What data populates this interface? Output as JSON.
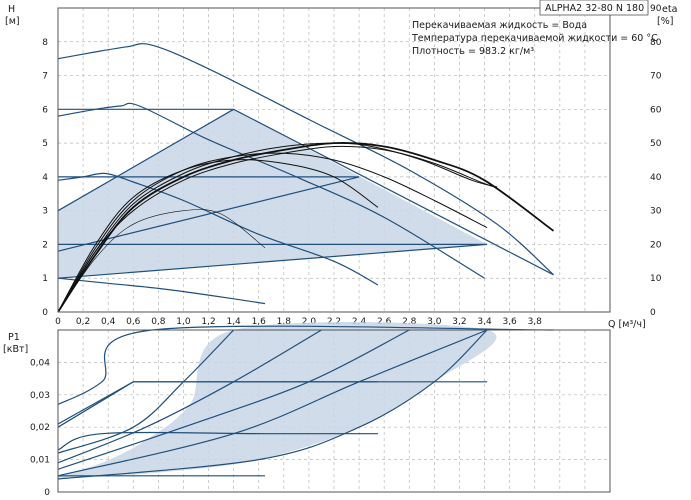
{
  "model_label": "ALPHA2 32-80 N 180",
  "notes": [
    "Перекачиваемая жидкость = Вода",
    "Температура перекачиваемой жидкости = 60 °C",
    "Плотность = 983.2 кг/м³"
  ],
  "chart_data": [
    {
      "type": "line",
      "title": "",
      "xlabel": "Q [м³/ч]",
      "ylabel": "H",
      "ylabel_unit": "[м]",
      "y2label": "eta",
      "y2label_unit": "[%]",
      "xlim": [
        0,
        4.4
      ],
      "ylim": [
        0,
        9
      ],
      "y2lim": [
        0,
        90
      ],
      "xticks": [
        "0",
        "0,2",
        "0,4",
        "0,6",
        "0,8",
        "1,0",
        "1,2",
        "1,4",
        "1,6",
        "1,8",
        "2,0",
        "2,2",
        "2,4",
        "2,6",
        "2,8",
        "3,0",
        "3,2",
        "3,4",
        "3,6",
        "3,8"
      ],
      "yticks": [
        "0",
        "1",
        "2",
        "3",
        "4",
        "5",
        "6",
        "7",
        "8"
      ],
      "y2ticks": [
        "0",
        "10",
        "20",
        "30",
        "40",
        "50",
        "60",
        "70",
        "80",
        "90"
      ],
      "grid": true,
      "shaded_region": [
        [
          0,
          1
        ],
        [
          0,
          3
        ],
        [
          1.4,
          6
        ],
        [
          3.42,
          2
        ],
        [
          3.42,
          2
        ]
      ],
      "series": [
        {
          "role": "head",
          "values": [
            [
              0,
              7.5
            ],
            [
              0.3,
              7.7
            ],
            [
              0.55,
              7.85
            ],
            [
              0.75,
              7.9
            ],
            [
              1.2,
              7.2
            ],
            [
              2.0,
              5.7
            ],
            [
              2.8,
              4.2
            ],
            [
              3.5,
              2.6
            ],
            [
              3.95,
              1.1
            ]
          ]
        },
        {
          "role": "head",
          "values": [
            [
              0,
              5.8
            ],
            [
              0.3,
              6.0
            ],
            [
              0.5,
              6.1
            ],
            [
              0.65,
              6.1
            ],
            [
              1.2,
              5.1
            ],
            [
              1.9,
              4.0
            ],
            [
              2.6,
              2.8
            ],
            [
              3.4,
              1.0
            ]
          ]
        },
        {
          "role": "head",
          "values": [
            [
              0,
              3.9
            ],
            [
              0.2,
              4.0
            ],
            [
              0.38,
              4.1
            ],
            [
              0.6,
              3.85
            ],
            [
              1.0,
              3.3
            ],
            [
              1.6,
              2.3
            ],
            [
              2.2,
              1.5
            ],
            [
              2.55,
              0.8
            ]
          ]
        },
        {
          "role": "head",
          "values": [
            [
              0,
              1.0
            ],
            [
              0.4,
              0.85
            ],
            [
              0.8,
              0.7
            ],
            [
              1.2,
              0.5
            ],
            [
              1.65,
              0.25
            ]
          ]
        },
        {
          "role": "head",
          "values": [
            [
              0,
              6.0
            ],
            [
              1.4,
              6.0
            ]
          ]
        },
        {
          "role": "head",
          "values": [
            [
              0,
              4.0
            ],
            [
              2.4,
              4.0
            ]
          ]
        },
        {
          "role": "head",
          "values": [
            [
              0,
              2.0
            ],
            [
              3.42,
              2.0
            ]
          ]
        },
        {
          "role": "head",
          "values": [
            [
              0,
              1.0
            ],
            [
              3.42,
              2.0
            ]
          ]
        },
        {
          "role": "head",
          "values": [
            [
              0,
              1.8
            ],
            [
              2.4,
              4.0
            ]
          ]
        },
        {
          "role": "head",
          "values": [
            [
              0,
              3.0
            ],
            [
              1.4,
              6.0
            ]
          ]
        },
        {
          "role": "head",
          "values": [
            [
              1.4,
              6.0
            ],
            [
              3.95,
              1.1
            ]
          ]
        },
        {
          "role": "efficiency",
          "values": [
            [
              0,
              0
            ],
            [
              0.3,
              18
            ],
            [
              0.6,
              30
            ],
            [
              1.0,
              39
            ],
            [
              1.4,
              44
            ],
            [
              1.8,
              47
            ],
            [
              2.2,
              49
            ],
            [
              2.6,
              48
            ],
            [
              3.0,
              44
            ],
            [
              3.4,
              38
            ],
            [
              3.5,
              37
            ]
          ]
        },
        {
          "role": "efficiency",
          "values": [
            [
              0,
              0
            ],
            [
              0.3,
              17
            ],
            [
              0.6,
              31
            ],
            [
              1.0,
              40
            ],
            [
              1.4,
              45
            ],
            [
              1.8,
              48
            ],
            [
              2.2,
              50
            ],
            [
              2.6,
              49
            ],
            [
              3.0,
              45
            ],
            [
              3.4,
              39
            ],
            [
              3.95,
              24
            ]
          ]
        },
        {
          "role": "efficiency",
          "values": [
            [
              0,
              0
            ],
            [
              0.3,
              18
            ],
            [
              0.6,
              32
            ],
            [
              1.0,
              41
            ],
            [
              1.4,
              46
            ],
            [
              1.8,
              49
            ],
            [
              2.2,
              50
            ],
            [
              2.5,
              49
            ],
            [
              2.9,
              45
            ],
            [
              3.3,
              39
            ],
            [
              3.5,
              37
            ]
          ]
        },
        {
          "role": "efficiency",
          "values": [
            [
              0,
              0
            ],
            [
              0.3,
              19
            ],
            [
              0.6,
              33
            ],
            [
              1.0,
              42
            ],
            [
              1.4,
              46
            ],
            [
              1.8,
              47
            ],
            [
              2.2,
              45
            ],
            [
              2.6,
              40
            ],
            [
              3.0,
              33
            ],
            [
              3.42,
              25
            ]
          ]
        },
        {
          "role": "efficiency",
          "values": [
            [
              0,
              0
            ],
            [
              0.3,
              20
            ],
            [
              0.6,
              34
            ],
            [
              1.0,
              42
            ],
            [
              1.4,
              45
            ],
            [
              1.8,
              44
            ],
            [
              2.2,
              40
            ],
            [
              2.55,
              31
            ]
          ]
        },
        {
          "role": "efficiency",
          "values": [
            [
              0,
              0
            ],
            [
              0.3,
              16
            ],
            [
              0.6,
              26
            ],
            [
              1.0,
              30
            ],
            [
              1.3,
              29
            ],
            [
              1.65,
              19
            ]
          ]
        }
      ]
    },
    {
      "type": "line",
      "title": "",
      "xlabel": "",
      "ylabel": "P1",
      "ylabel_unit": "[кВт]",
      "xlim": [
        0,
        4.4
      ],
      "ylim": [
        0,
        0.05
      ],
      "yticks": [
        "0",
        "0,01",
        "0,02",
        "0,03",
        "0,04"
      ],
      "grid": true,
      "shaded_region": [
        [
          0,
          0.005
        ],
        [
          0.35,
          0.009
        ],
        [
          0.7,
          0.016
        ],
        [
          1.05,
          0.027
        ],
        [
          1.4,
          0.05
        ],
        [
          3.42,
          0.05
        ],
        [
          3.0,
          0.034
        ],
        [
          2.4,
          0.02
        ],
        [
          1.6,
          0.01
        ],
        [
          0.8,
          0.006
        ],
        [
          0,
          0.004
        ]
      ],
      "series": [
        {
          "values": [
            [
              0,
              0.027
            ],
            [
              0.35,
              0.034
            ],
            [
              0.75,
              0.05
            ],
            [
              3.95,
              0.05
            ]
          ]
        },
        {
          "values": [
            [
              0,
              0.021
            ],
            [
              0.6,
              0.034
            ],
            [
              2.55,
              0.034
            ]
          ]
        },
        {
          "values": [
            [
              0,
              0.013
            ],
            [
              0.35,
              0.018
            ],
            [
              1.65,
              0.018
            ],
            [
              2.55,
              0.018
            ]
          ]
        },
        {
          "values": [
            [
              0,
              0.005
            ],
            [
              1.65,
              0.005
            ]
          ]
        },
        {
          "values": [
            [
              0,
              0.02
            ],
            [
              0.6,
              0.034
            ],
            [
              3.42,
              0.034
            ]
          ]
        },
        {
          "values": [
            [
              0,
              0.012
            ],
            [
              0.6,
              0.02
            ],
            [
              1.0,
              0.034
            ],
            [
              1.4,
              0.05
            ]
          ]
        },
        {
          "values": [
            [
              0,
              0.009
            ],
            [
              0.7,
              0.02
            ],
            [
              1.4,
              0.034
            ],
            [
              2.1,
              0.05
            ]
          ]
        },
        {
          "values": [
            [
              0,
              0.007
            ],
            [
              1.0,
              0.02
            ],
            [
              2.0,
              0.034
            ],
            [
              2.8,
              0.05
            ]
          ]
        },
        {
          "values": [
            [
              0,
              0.005
            ],
            [
              1.4,
              0.018
            ],
            [
              2.4,
              0.034
            ],
            [
              3.42,
              0.05
            ]
          ]
        },
        {
          "values": [
            [
              0,
              0.004
            ],
            [
              1.6,
              0.01
            ],
            [
              2.4,
              0.02
            ],
            [
              3.0,
              0.034
            ],
            [
              3.42,
              0.05
            ]
          ]
        }
      ]
    }
  ]
}
